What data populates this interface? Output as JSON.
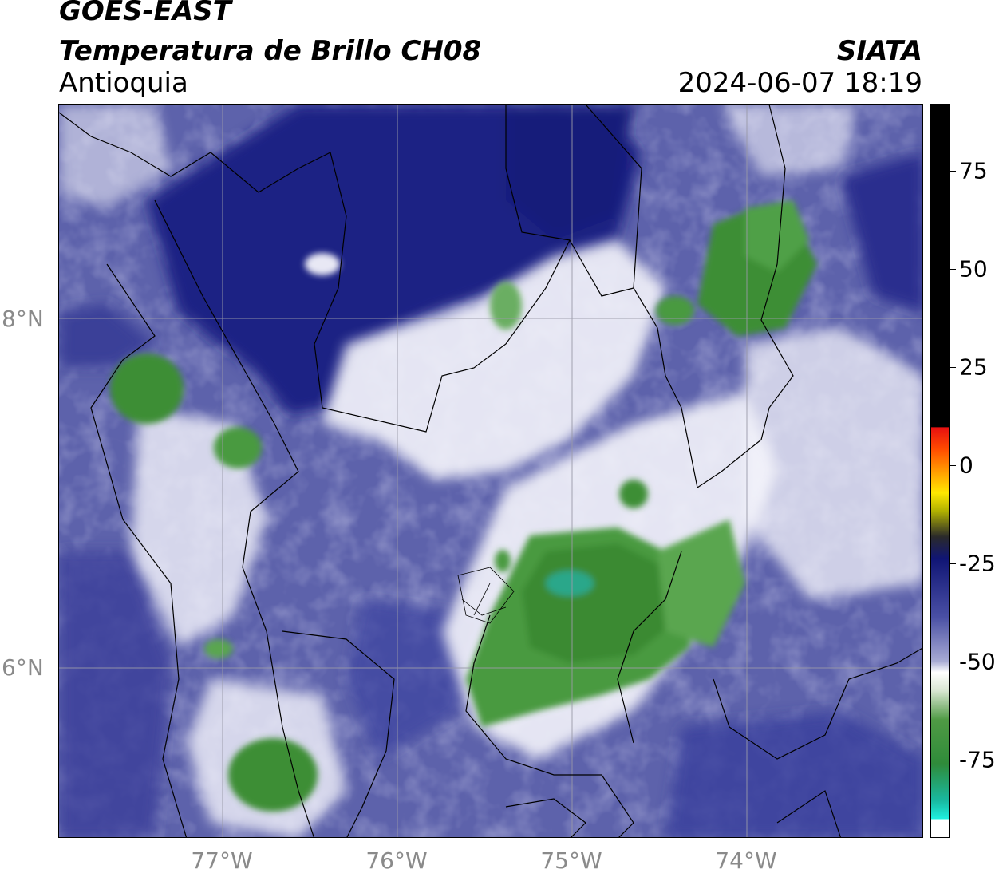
{
  "header": {
    "satellite": "GOES-EAST",
    "product": "Temperatura de Brillo CH08",
    "region": "Antioquia",
    "organization": "SIATA",
    "timestamp": "2024-06-07 18:19"
  },
  "map": {
    "lon_range": [
      -77.95,
      -73.0
    ],
    "lat_range": [
      5.0,
      9.2
    ],
    "lat_ticks": [
      {
        "value": 8,
        "label": "8°N"
      },
      {
        "value": 6,
        "label": "6°N"
      }
    ],
    "lon_ticks": [
      {
        "value": -77,
        "label": "77°W"
      },
      {
        "value": -76,
        "label": "76°W"
      },
      {
        "value": -75,
        "label": "75°W"
      },
      {
        "value": -74,
        "label": "74°W"
      }
    ],
    "colors": {
      "warm": "#1c2080",
      "mid": "#6a6fb5",
      "cool": "#ffffff",
      "cold": "#3d8a34",
      "coldest": "#1bbf9a"
    }
  },
  "colorbar": {
    "range": [
      -95,
      92
    ],
    "ticks": [
      {
        "value": 75,
        "label": "75"
      },
      {
        "value": 50,
        "label": "50"
      },
      {
        "value": 25,
        "label": "25"
      },
      {
        "value": 0,
        "label": "0"
      },
      {
        "value": -25,
        "label": "-25"
      },
      {
        "value": -50,
        "label": "-50"
      },
      {
        "value": -75,
        "label": "-75"
      }
    ]
  }
}
